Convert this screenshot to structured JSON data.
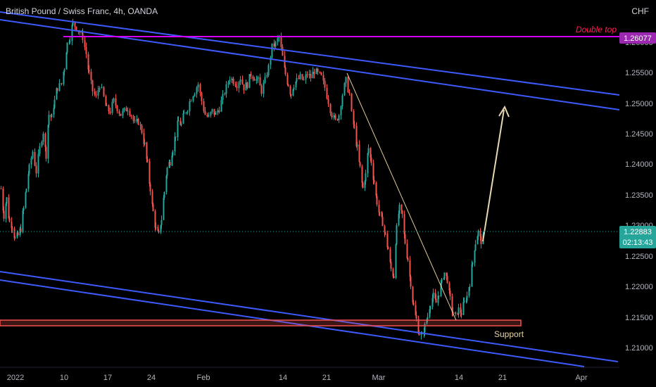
{
  "header": {
    "title": "British Pound / Swiss Franc, 4h, OANDA",
    "currency": "CHF"
  },
  "chart_data": {
    "type": "candlestick",
    "ylim": [
      1.2065,
      1.264
    ],
    "yticks": [
      "1.26000",
      "1.25500",
      "1.25000",
      "1.24500",
      "1.24000",
      "1.23500",
      "1.23000",
      "1.22500",
      "1.22000",
      "1.21500",
      "1.21000"
    ],
    "xticks": [
      "2022",
      "10",
      "17",
      "24",
      "Feb",
      "14",
      "21",
      "Mar",
      "14",
      "21",
      "Apr"
    ],
    "last_price": {
      "value": "1.22883",
      "countdown": "02:13:43"
    },
    "double_top": {
      "value": "1.26077",
      "label": "Double top"
    },
    "support_label": "Support",
    "path": [
      [
        0,
        1.236
      ],
      [
        4,
        1.232
      ],
      [
        8,
        1.2345
      ],
      [
        12,
        1.231
      ],
      [
        16,
        1.2305
      ],
      [
        20,
        1.2285
      ],
      [
        24,
        1.229
      ],
      [
        28,
        1.23
      ],
      [
        32,
        1.233
      ],
      [
        36,
        1.236
      ],
      [
        40,
        1.239
      ],
      [
        45,
        1.2415
      ],
      [
        50,
        1.2385
      ],
      [
        55,
        1.242
      ],
      [
        60,
        1.2445
      ],
      [
        64,
        1.241
      ],
      [
        68,
        1.247
      ],
      [
        72,
        1.2465
      ],
      [
        76,
        1.249
      ],
      [
        80,
        1.251
      ],
      [
        86,
        1.2515
      ],
      [
        90,
        1.254
      ],
      [
        94,
        1.2575
      ],
      [
        98,
        1.2585
      ],
      [
        102,
        1.2605
      ],
      [
        107,
        1.26
      ],
      [
        112,
        1.2592
      ],
      [
        116,
        1.2585
      ],
      [
        121,
        1.256
      ],
      [
        125,
        1.253
      ],
      [
        130,
        1.2505
      ],
      [
        135,
        1.2495
      ],
      [
        140,
        1.2515
      ],
      [
        146,
        1.2495
      ],
      [
        150,
        1.2478
      ],
      [
        155,
        1.2475
      ],
      [
        160,
        1.249
      ],
      [
        165,
        1.248
      ],
      [
        170,
        1.247
      ],
      [
        175,
        1.2475
      ],
      [
        180,
        1.248
      ],
      [
        185,
        1.247
      ],
      [
        190,
        1.2455
      ],
      [
        195,
        1.246
      ],
      [
        200,
        1.2445
      ],
      [
        204,
        1.2425
      ],
      [
        208,
        1.2395
      ],
      [
        212,
        1.236
      ],
      [
        216,
        1.2325
      ],
      [
        220,
        1.23
      ],
      [
        224,
        1.229
      ],
      [
        228,
        1.2315
      ],
      [
        232,
        1.2355
      ],
      [
        236,
        1.239
      ],
      [
        240,
        1.24
      ],
      [
        244,
        1.242
      ],
      [
        248,
        1.244
      ],
      [
        252,
        1.246
      ],
      [
        256,
        1.2455
      ],
      [
        260,
        1.247
      ],
      [
        265,
        1.248
      ],
      [
        270,
        1.2495
      ],
      [
        275,
        1.2505
      ],
      [
        280,
        1.2515
      ],
      [
        285,
        1.249
      ],
      [
        290,
        1.247
      ],
      [
        295,
        1.2465
      ],
      [
        300,
        1.2475
      ],
      [
        305,
        1.247
      ],
      [
        310,
        1.248
      ],
      [
        315,
        1.2495
      ],
      [
        320,
        1.251
      ],
      [
        325,
        1.2525
      ],
      [
        330,
        1.252
      ],
      [
        335,
        1.2515
      ],
      [
        340,
        1.2525
      ],
      [
        345,
        1.251
      ],
      [
        350,
        1.2515
      ],
      [
        355,
        1.253
      ],
      [
        360,
        1.2525
      ],
      [
        365,
        1.252
      ],
      [
        370,
        1.2505
      ],
      [
        375,
        1.252
      ],
      [
        380,
        1.254
      ],
      [
        385,
        1.257
      ],
      [
        390,
        1.2575
      ],
      [
        395,
        1.2585
      ],
      [
        400,
        1.2555
      ],
      [
        404,
        1.253
      ],
      [
        408,
        1.2515
      ],
      [
        412,
        1.25
      ],
      [
        416,
        1.2515
      ],
      [
        420,
        1.252
      ],
      [
        425,
        1.2525
      ],
      [
        430,
        1.252
      ],
      [
        435,
        1.253
      ],
      [
        440,
        1.2525
      ],
      [
        445,
        1.2535
      ],
      [
        450,
        1.253
      ],
      [
        455,
        1.2525
      ],
      [
        460,
        1.251
      ],
      [
        465,
        1.249
      ],
      [
        470,
        1.247
      ],
      [
        475,
        1.246
      ],
      [
        480,
        1.247
      ],
      [
        485,
        1.25
      ],
      [
        490,
        1.252
      ],
      [
        495,
        1.25
      ],
      [
        498,
        1.247
      ],
      [
        502,
        1.245
      ],
      [
        506,
        1.242
      ],
      [
        510,
        1.239
      ],
      [
        514,
        1.236
      ],
      [
        518,
        1.238
      ],
      [
        522,
        1.242
      ],
      [
        526,
        1.24
      ],
      [
        530,
        1.237
      ],
      [
        534,
        1.234
      ],
      [
        538,
        1.232
      ],
      [
        542,
        1.231
      ],
      [
        546,
        1.229
      ],
      [
        550,
        1.227
      ],
      [
        554,
        1.224
      ],
      [
        558,
        1.223
      ],
      [
        562,
        1.23
      ],
      [
        566,
        1.233
      ],
      [
        570,
        1.232
      ],
      [
        574,
        1.228
      ],
      [
        578,
        1.2255
      ],
      [
        582,
        1.222
      ],
      [
        586,
        1.2185
      ],
      [
        590,
        1.2165
      ],
      [
        594,
        1.2145
      ],
      [
        598,
        1.214
      ],
      [
        602,
        1.2155
      ],
      [
        606,
        1.217
      ],
      [
        610,
        1.219
      ],
      [
        614,
        1.22
      ],
      [
        618,
        1.219
      ],
      [
        622,
        1.2205
      ],
      [
        626,
        1.222
      ],
      [
        630,
        1.2235
      ],
      [
        634,
        1.2225
      ],
      [
        638,
        1.2195
      ],
      [
        642,
        1.2175
      ],
      [
        646,
        1.217
      ],
      [
        650,
        1.218
      ],
      [
        654,
        1.2175
      ],
      [
        658,
        1.219
      ],
      [
        662,
        1.22
      ],
      [
        666,
        1.222
      ],
      [
        670,
        1.225
      ],
      [
        674,
        1.228
      ],
      [
        678,
        1.2295
      ],
      [
        682,
        1.2282
      ],
      [
        686,
        1.2288
      ]
    ]
  }
}
